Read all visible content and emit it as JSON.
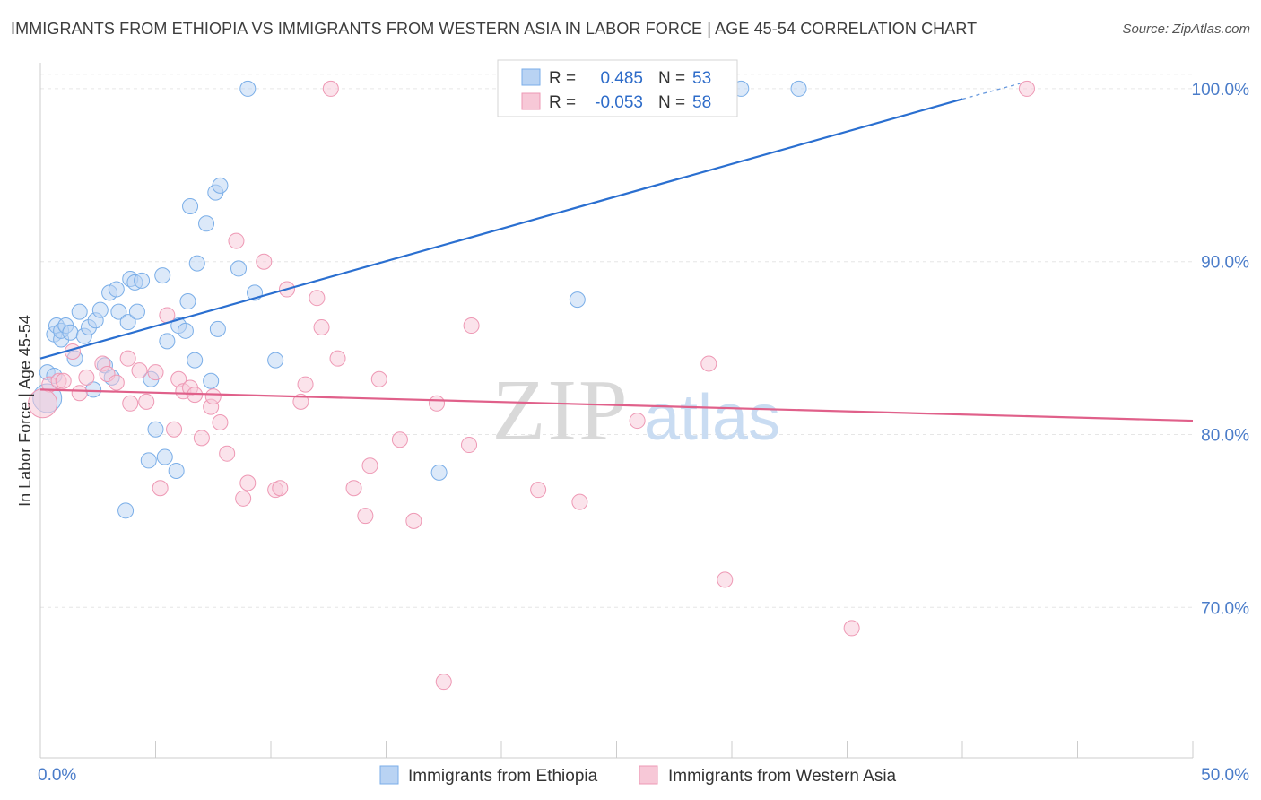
{
  "chart_data": {
    "type": "scatter",
    "title": "IMMIGRANTS FROM ETHIOPIA VS IMMIGRANTS FROM WESTERN ASIA IN LABOR FORCE | AGE 45-54 CORRELATION CHART",
    "source": "Source: ZipAtlas.com",
    "xlabel": "",
    "ylabel": "In Labor Force | Age 45-54",
    "xlim": [
      0,
      50
    ],
    "ylim": [
      61.3,
      101.5
    ],
    "x_tick_labels": [
      {
        "value": 0,
        "label": "0.0%"
      },
      {
        "value": 50,
        "label": "50.0%"
      }
    ],
    "y_tick_labels": [
      {
        "value": 70,
        "label": "70.0%"
      },
      {
        "value": 80,
        "label": "80.0%"
      },
      {
        "value": 90,
        "label": "90.0%"
      },
      {
        "value": 100,
        "label": "100.0%"
      }
    ],
    "x_minor_ticks": [
      0,
      5,
      10,
      15,
      20,
      25,
      30,
      35,
      40,
      45,
      50
    ],
    "watermark": {
      "zip": "ZIP",
      "atlas": "atlas"
    },
    "stats_box": {
      "r_label": "R =",
      "n_label": "N =",
      "rows": [
        {
          "series": "Immigrants from Ethiopia",
          "r": "0.485",
          "n": "53"
        },
        {
          "series": "Immigrants from Western Asia",
          "r": "-0.053",
          "n": "58"
        }
      ]
    },
    "series": [
      {
        "name": "Immigrants from Ethiopia",
        "color": "#7aaee8",
        "fill": "#b9d3f3",
        "line_color": "#2a6fd0",
        "trend": {
          "x0": 0,
          "y0": 84.4,
          "x1": 40,
          "y1": 99.4,
          "dash_x1": 42.5,
          "dash_y1": 100.3
        },
        "points": [
          [
            0.3,
            82.1
          ],
          [
            0.3,
            83.6
          ],
          [
            0.6,
            83.4
          ],
          [
            0.6,
            85.8
          ],
          [
            0.7,
            86.3
          ],
          [
            0.9,
            85.5
          ],
          [
            0.9,
            86.0
          ],
          [
            1.1,
            86.3
          ],
          [
            1.3,
            85.9
          ],
          [
            1.5,
            84.4
          ],
          [
            1.7,
            87.1
          ],
          [
            1.9,
            85.7
          ],
          [
            2.1,
            86.2
          ],
          [
            2.3,
            82.6
          ],
          [
            2.4,
            86.6
          ],
          [
            2.6,
            87.2
          ],
          [
            2.8,
            84.0
          ],
          [
            3.0,
            88.2
          ],
          [
            3.1,
            83.3
          ],
          [
            3.3,
            88.4
          ],
          [
            3.4,
            87.1
          ],
          [
            3.7,
            75.6
          ],
          [
            3.8,
            86.5
          ],
          [
            3.9,
            89.0
          ],
          [
            4.1,
            88.8
          ],
          [
            4.2,
            87.1
          ],
          [
            4.4,
            88.9
          ],
          [
            4.7,
            78.5
          ],
          [
            4.8,
            83.2
          ],
          [
            5.0,
            80.3
          ],
          [
            5.3,
            89.2
          ],
          [
            5.4,
            78.7
          ],
          [
            5.5,
            85.4
          ],
          [
            5.9,
            77.9
          ],
          [
            6.0,
            86.3
          ],
          [
            6.3,
            86.0
          ],
          [
            6.4,
            87.7
          ],
          [
            6.5,
            93.2
          ],
          [
            6.7,
            84.3
          ],
          [
            6.8,
            89.9
          ],
          [
            7.2,
            92.2
          ],
          [
            7.4,
            83.1
          ],
          [
            7.6,
            94.0
          ],
          [
            7.7,
            86.1
          ],
          [
            7.8,
            94.4
          ],
          [
            8.6,
            89.6
          ],
          [
            9.0,
            100.0
          ],
          [
            9.3,
            88.2
          ],
          [
            10.2,
            84.3
          ],
          [
            17.3,
            77.8
          ],
          [
            23.3,
            87.8
          ],
          [
            30.4,
            100.0
          ],
          [
            32.9,
            100.0
          ]
        ]
      },
      {
        "name": "Immigrants from Western Asia",
        "color": "#ee98b4",
        "fill": "#f7c8d7",
        "line_color": "#e0608a",
        "trend": {
          "x0": 0,
          "y0": 82.6,
          "x1": 50,
          "y1": 80.8
        },
        "points": [
          [
            0.4,
            82.9
          ],
          [
            0.8,
            83.1
          ],
          [
            1.0,
            83.1
          ],
          [
            1.4,
            84.8
          ],
          [
            1.7,
            82.4
          ],
          [
            2.0,
            83.3
          ],
          [
            2.7,
            84.1
          ],
          [
            2.9,
            83.5
          ],
          [
            3.3,
            83.0
          ],
          [
            3.8,
            84.4
          ],
          [
            3.9,
            81.8
          ],
          [
            4.3,
            83.7
          ],
          [
            4.6,
            81.9
          ],
          [
            5.0,
            83.6
          ],
          [
            5.2,
            76.9
          ],
          [
            5.5,
            86.9
          ],
          [
            5.8,
            80.3
          ],
          [
            6.0,
            83.2
          ],
          [
            6.2,
            82.5
          ],
          [
            6.5,
            82.7
          ],
          [
            6.7,
            82.3
          ],
          [
            7.0,
            79.8
          ],
          [
            7.4,
            81.6
          ],
          [
            7.5,
            82.2
          ],
          [
            7.8,
            80.7
          ],
          [
            8.1,
            78.9
          ],
          [
            8.5,
            91.2
          ],
          [
            8.8,
            76.3
          ],
          [
            9.0,
            77.2
          ],
          [
            9.7,
            90.0
          ],
          [
            10.2,
            76.8
          ],
          [
            10.4,
            76.9
          ],
          [
            10.7,
            88.4
          ],
          [
            11.3,
            81.9
          ],
          [
            11.5,
            82.9
          ],
          [
            12.0,
            87.9
          ],
          [
            12.2,
            86.2
          ],
          [
            12.6,
            100.0
          ],
          [
            12.9,
            84.4
          ],
          [
            13.6,
            76.9
          ],
          [
            14.1,
            75.3
          ],
          [
            14.3,
            78.2
          ],
          [
            14.7,
            83.2
          ],
          [
            15.6,
            79.7
          ],
          [
            16.2,
            75.0
          ],
          [
            17.2,
            81.8
          ],
          [
            17.5,
            65.7
          ],
          [
            18.6,
            79.4
          ],
          [
            18.7,
            86.3
          ],
          [
            20.5,
            100.0
          ],
          [
            21.6,
            76.8
          ],
          [
            23.4,
            76.1
          ],
          [
            25.9,
            80.8
          ],
          [
            29.0,
            84.1
          ],
          [
            29.7,
            71.6
          ],
          [
            35.2,
            68.8
          ],
          [
            42.8,
            100.0
          ],
          [
            0.1,
            81.8
          ]
        ]
      }
    ]
  },
  "legend": {
    "items": [
      {
        "label": "Immigrants from Ethiopia"
      },
      {
        "label": "Immigrants from Western Asia"
      }
    ]
  }
}
